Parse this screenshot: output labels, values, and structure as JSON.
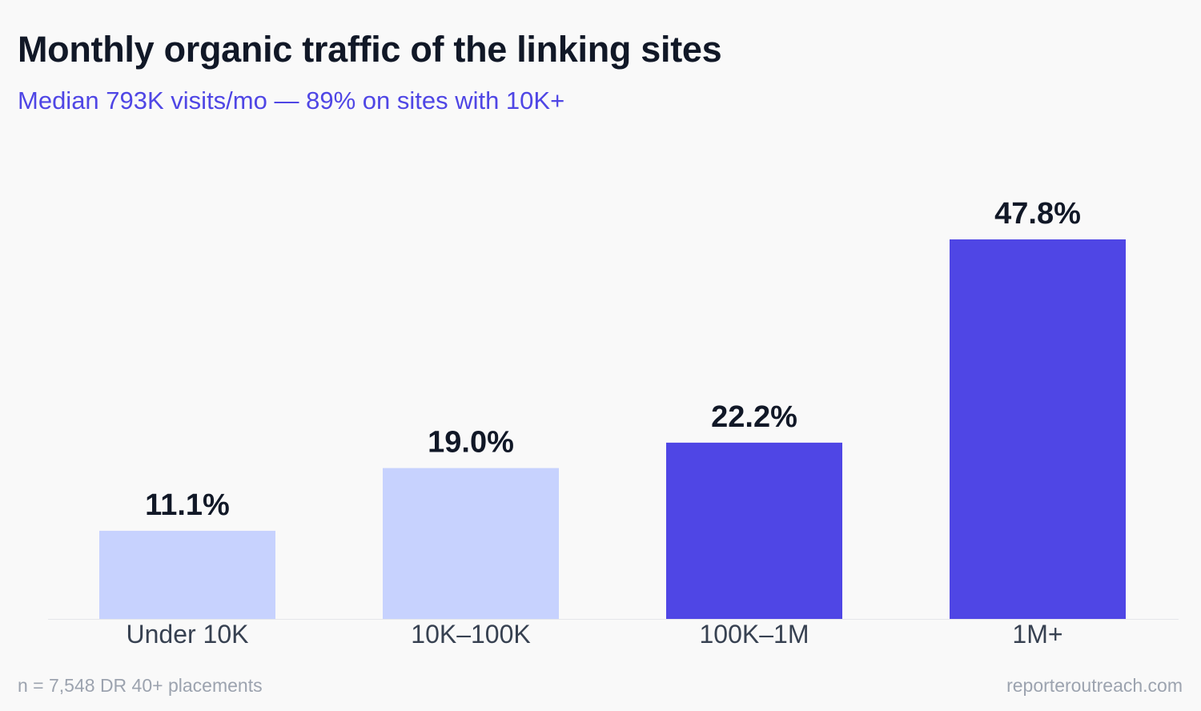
{
  "header": {
    "title": "Monthly organic traffic of the linking sites",
    "subtitle": "Median 793K visits/mo — 89% on sites with 10K+"
  },
  "footer": {
    "note": "n = 7,548 DR 40+ placements",
    "source": "reporteroutreach.com"
  },
  "colors": {
    "light_bar": "#c7d2fe",
    "dark_bar": "#4f46e5",
    "label_text": "#111827",
    "axis_text": "#374151",
    "baseline": "#e5e7eb"
  },
  "chart_data": {
    "type": "bar",
    "categories": [
      "Under 10K",
      "10K–100K",
      "100K–1M",
      "1M+"
    ],
    "values": [
      11.1,
      19.0,
      22.2,
      47.8
    ],
    "value_labels": [
      "11.1%",
      "19.0%",
      "22.2%",
      "47.8%"
    ],
    "highlight": [
      false,
      false,
      true,
      true
    ],
    "ylim": [
      0,
      50
    ],
    "grid": false,
    "legend": "none"
  }
}
